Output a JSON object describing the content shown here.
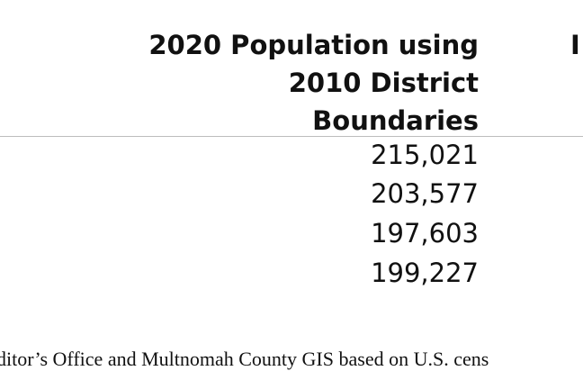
{
  "table": {
    "header": {
      "line1": "2020 Population using",
      "line2": "2010 District",
      "line3": "Boundaries",
      "next_column_fragment": "I"
    },
    "rows": [
      {
        "value": "215,021"
      },
      {
        "value": "203,577"
      },
      {
        "value": "197,603"
      },
      {
        "value": "199,227"
      }
    ]
  },
  "source_note": "ditor’s Office and Multnomah County GIS based on U.S. cens"
}
